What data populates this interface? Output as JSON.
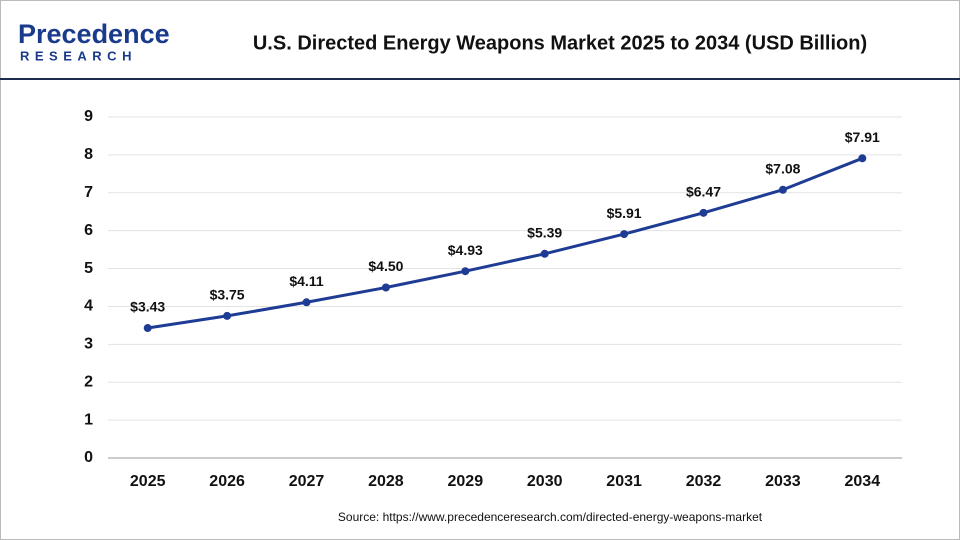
{
  "header": {
    "logo_name": "Precedence",
    "logo_tagline": "RESEARCH"
  },
  "chart_data": {
    "type": "line",
    "title": "U.S. Directed Energy Weapons Market 2025 to 2034 (USD Billion)",
    "categories": [
      "2025",
      "2026",
      "2027",
      "2028",
      "2029",
      "2030",
      "2031",
      "2032",
      "2033",
      "2034"
    ],
    "series": [
      {
        "name": "U.S. Directed Energy Weapons Market",
        "color": "#1f3c94",
        "values": [
          3.43,
          3.75,
          4.11,
          4.5,
          4.93,
          5.39,
          5.91,
          6.47,
          7.08,
          7.91
        ],
        "value_labels": [
          "$3.43",
          "$3.75",
          "$4.11",
          "$4.50",
          "$4.93",
          "$5.39",
          "$5.91",
          "$6.47",
          "$7.08",
          "$7.91"
        ]
      }
    ],
    "ylim": [
      0,
      9
    ],
    "yticks": [
      0,
      1,
      2,
      3,
      4,
      5,
      6,
      7,
      8,
      9
    ],
    "grid": true,
    "source": "Source: https://www.precedenceresearch.com/directed-energy-weapons-market"
  }
}
